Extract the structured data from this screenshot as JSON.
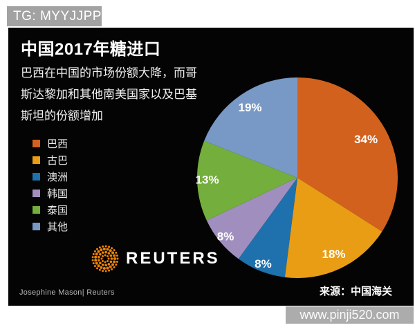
{
  "banner": {
    "text": "TG: MYYJJPP"
  },
  "chart": {
    "subtitle_lines": [
      "巴西在中国的市场份额大降，而哥",
      "斯达黎加和其他南美国家以及巴基",
      "斯坦的份额增加"
    ],
    "logo_text": "REUTERS",
    "credit": "Josephine Mason| Reuters",
    "source": "来源：中国海关"
  },
  "chart_data": {
    "type": "pie",
    "title": "中国2017年糖进口",
    "subtitle": "巴西在中国的市场份额大降，而哥斯达黎加和其他南美国家以及巴基斯坦的份额增加",
    "categories": [
      "巴西",
      "古巴",
      "澳洲",
      "韩国",
      "泰国",
      "其他"
    ],
    "values": [
      34,
      18,
      8,
      8,
      13,
      19
    ],
    "unit": "%",
    "label_format": "{value}%",
    "colors": [
      "#D2611E",
      "#E89D15",
      "#1E71AD",
      "#A08FBE",
      "#74AE3C",
      "#7899C6"
    ],
    "start_angle_deg": -90,
    "direction": "clockwise",
    "legend_position": "left",
    "label_radius_fractions": [
      0.78,
      0.85,
      0.93,
      0.93,
      0.9,
      0.84
    ],
    "accent_color": "#EF8200"
  },
  "watermark": {
    "text": "www.pinji520.com"
  }
}
